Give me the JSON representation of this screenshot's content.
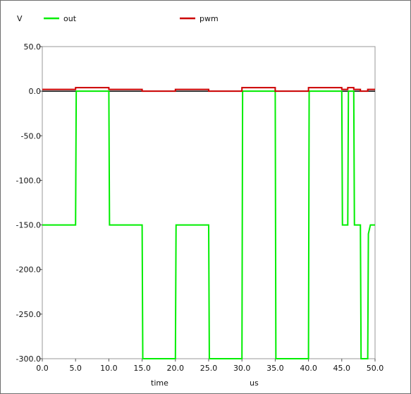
{
  "chart_data": {
    "type": "line",
    "y_unit": "V",
    "x_label": "time",
    "x_unit": "us",
    "xlim": [
      0,
      50
    ],
    "ylim": [
      -300,
      50
    ],
    "x_ticks": [
      "0.0",
      "5.0",
      "10.0",
      "15.0",
      "20.0",
      "25.0",
      "30.0",
      "35.0",
      "40.0",
      "45.0",
      "50.0"
    ],
    "y_ticks": [
      "50.0",
      "0.0",
      "-50.0",
      "-100.0",
      "-150.0",
      "-200.0",
      "-250.0",
      "-300.0"
    ],
    "grid": false,
    "legend_position": "top",
    "series": [
      {
        "name": "out",
        "color": "#00ee00",
        "points": [
          [
            0,
            -150
          ],
          [
            5,
            -150
          ],
          [
            5.1,
            0
          ],
          [
            10,
            0
          ],
          [
            10.1,
            -150
          ],
          [
            15,
            -150
          ],
          [
            15.1,
            -300
          ],
          [
            20,
            -300
          ],
          [
            20.1,
            -150
          ],
          [
            25,
            -150
          ],
          [
            25.1,
            -300
          ],
          [
            30,
            -300
          ],
          [
            30.1,
            0
          ],
          [
            35,
            0
          ],
          [
            35.1,
            -300
          ],
          [
            40,
            -300
          ],
          [
            40.1,
            0
          ],
          [
            45,
            0
          ],
          [
            45.1,
            -150
          ],
          [
            45.9,
            -150
          ],
          [
            46,
            0
          ],
          [
            46.8,
            0
          ],
          [
            46.9,
            -150
          ],
          [
            47.8,
            -150
          ],
          [
            47.9,
            -300
          ],
          [
            48.9,
            -300
          ],
          [
            49,
            -160
          ],
          [
            49.3,
            -150
          ],
          [
            50,
            -150
          ]
        ]
      },
      {
        "name": "pwm",
        "color": "#cc0000",
        "points": [
          [
            0,
            2
          ],
          [
            5,
            2
          ],
          [
            5,
            4
          ],
          [
            10,
            4
          ],
          [
            10,
            2
          ],
          [
            15,
            2
          ],
          [
            15,
            0
          ],
          [
            20,
            0
          ],
          [
            20,
            2
          ],
          [
            25,
            2
          ],
          [
            25,
            0
          ],
          [
            30,
            0
          ],
          [
            30,
            4
          ],
          [
            35,
            4
          ],
          [
            35,
            0
          ],
          [
            40,
            0
          ],
          [
            40,
            4
          ],
          [
            45,
            4
          ],
          [
            45,
            2
          ],
          [
            45.9,
            2
          ],
          [
            45.9,
            4
          ],
          [
            46.8,
            4
          ],
          [
            46.8,
            2
          ],
          [
            47.8,
            2
          ],
          [
            47.8,
            0
          ],
          [
            48.9,
            0
          ],
          [
            48.9,
            2
          ],
          [
            50,
            2
          ]
        ]
      }
    ]
  }
}
